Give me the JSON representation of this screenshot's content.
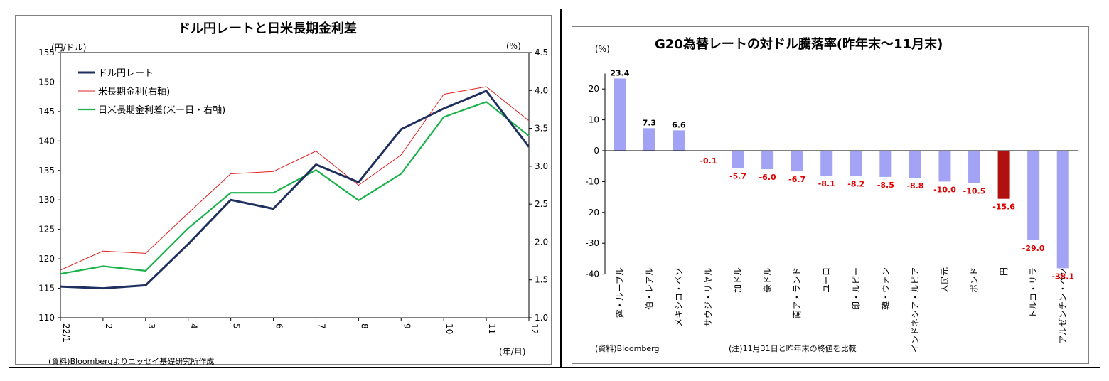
{
  "charts": {
    "left": {
      "title": "ドル円レートと日米長期金利差",
      "ylabel_left": "(円/ドル)",
      "ylabel_right": "(%)",
      "xlabel": "(年/月)",
      "source": "(資料)Bloombergよりニッセイ基礎研究所作成",
      "x_ticks": [
        "22/1",
        "2",
        "3",
        "4",
        "5",
        "6",
        "7",
        "8",
        "9",
        "10",
        "11",
        "12"
      ],
      "y_left_ticks": [
        "110",
        "115",
        "120",
        "125",
        "130",
        "135",
        "140",
        "145",
        "150",
        "155"
      ],
      "y_right_ticks": [
        "1.0",
        "1.5",
        "2.0",
        "2.5",
        "3.0",
        "3.5",
        "4.0",
        "4.5"
      ],
      "legend": [
        "ドル円レート",
        "米長期金利(右軸)",
        "日米長期金利差(米ー日・右軸)"
      ]
    },
    "right": {
      "title": "G20為替レートの対ドル騰落率(昨年末～11月末)",
      "ylabel": "(%)",
      "source": "(資料)Bloomberg",
      "note": "(注)11月31日と昨年末の終値を比較",
      "y_ticks": [
        "20",
        "10",
        "0",
        "-10",
        "-20",
        "-30",
        "-40"
      ]
    }
  },
  "colors": {
    "usdjpy": "#1f2f5e",
    "us_yield": "#e02020",
    "spread": "#19b24b",
    "bar": "#a3a3f5",
    "bar_highlight": "#b01010",
    "negative_label": "#e00000"
  },
  "chart_data": [
    {
      "type": "line",
      "title": "ドル円レートと日米長期金利差",
      "x": [
        "2022-01",
        "2022-02",
        "2022-03",
        "2022-04",
        "2022-05",
        "2022-06",
        "2022-07",
        "2022-08",
        "2022-09",
        "2022-10",
        "2022-11",
        "2022-12"
      ],
      "series": [
        {
          "name": "ドル円レート",
          "axis": "left",
          "values": [
            115.3,
            115.0,
            115.5,
            122.5,
            130.0,
            128.5,
            136.0,
            133.0,
            142.0,
            145.5,
            148.5,
            139.0
          ]
        },
        {
          "name": "米長期金利(右軸)",
          "axis": "right",
          "values": [
            1.63,
            1.88,
            1.85,
            2.38,
            2.9,
            2.93,
            3.2,
            2.75,
            3.15,
            3.95,
            4.05,
            3.6
          ]
        },
        {
          "name": "日米長期金利差(米ー日・右軸)",
          "axis": "right",
          "values": [
            1.58,
            1.68,
            1.62,
            2.18,
            2.65,
            2.65,
            2.95,
            2.55,
            2.9,
            3.65,
            3.85,
            3.4
          ]
        }
      ],
      "ylim_left": [
        110,
        155
      ],
      "ylim_right": [
        1.0,
        4.5
      ],
      "grid": false,
      "legend_position": "top-left"
    },
    {
      "type": "bar",
      "title": "G20為替レートの対ドル騰落率(昨年末～11月末)",
      "categories": [
        "露・ルーブル",
        "伯・レアル",
        "メキシコ・ペソ",
        "サウジ・リヤル",
        "加ドル",
        "豪ドル",
        "南ア・ランド",
        "ユーロ",
        "印・ルピー",
        "韓・ウォン",
        "インドネシア・ルピア",
        "人民元",
        "ポンド",
        "円",
        "トルコ・リラ",
        "アルゼンチン・ペソ"
      ],
      "values": [
        23.4,
        7.3,
        6.6,
        -0.1,
        -5.7,
        -6.0,
        -6.7,
        -8.1,
        -8.2,
        -8.5,
        -8.8,
        -10.0,
        -10.5,
        -15.6,
        -29.0,
        -38.1
      ],
      "value_labels": [
        "23.4",
        "7.3",
        "6.6",
        "-0.1",
        "-5.7",
        "-6.0",
        "-6.7",
        "-8.1",
        "-8.2",
        "-8.5",
        "-8.8",
        "-10.0",
        "-10.5",
        "-15.6",
        "-29.0",
        "-38.1"
      ],
      "highlight": "円",
      "ylabel": "(%)",
      "ylim": [
        -40,
        25
      ],
      "grid": false
    }
  ]
}
